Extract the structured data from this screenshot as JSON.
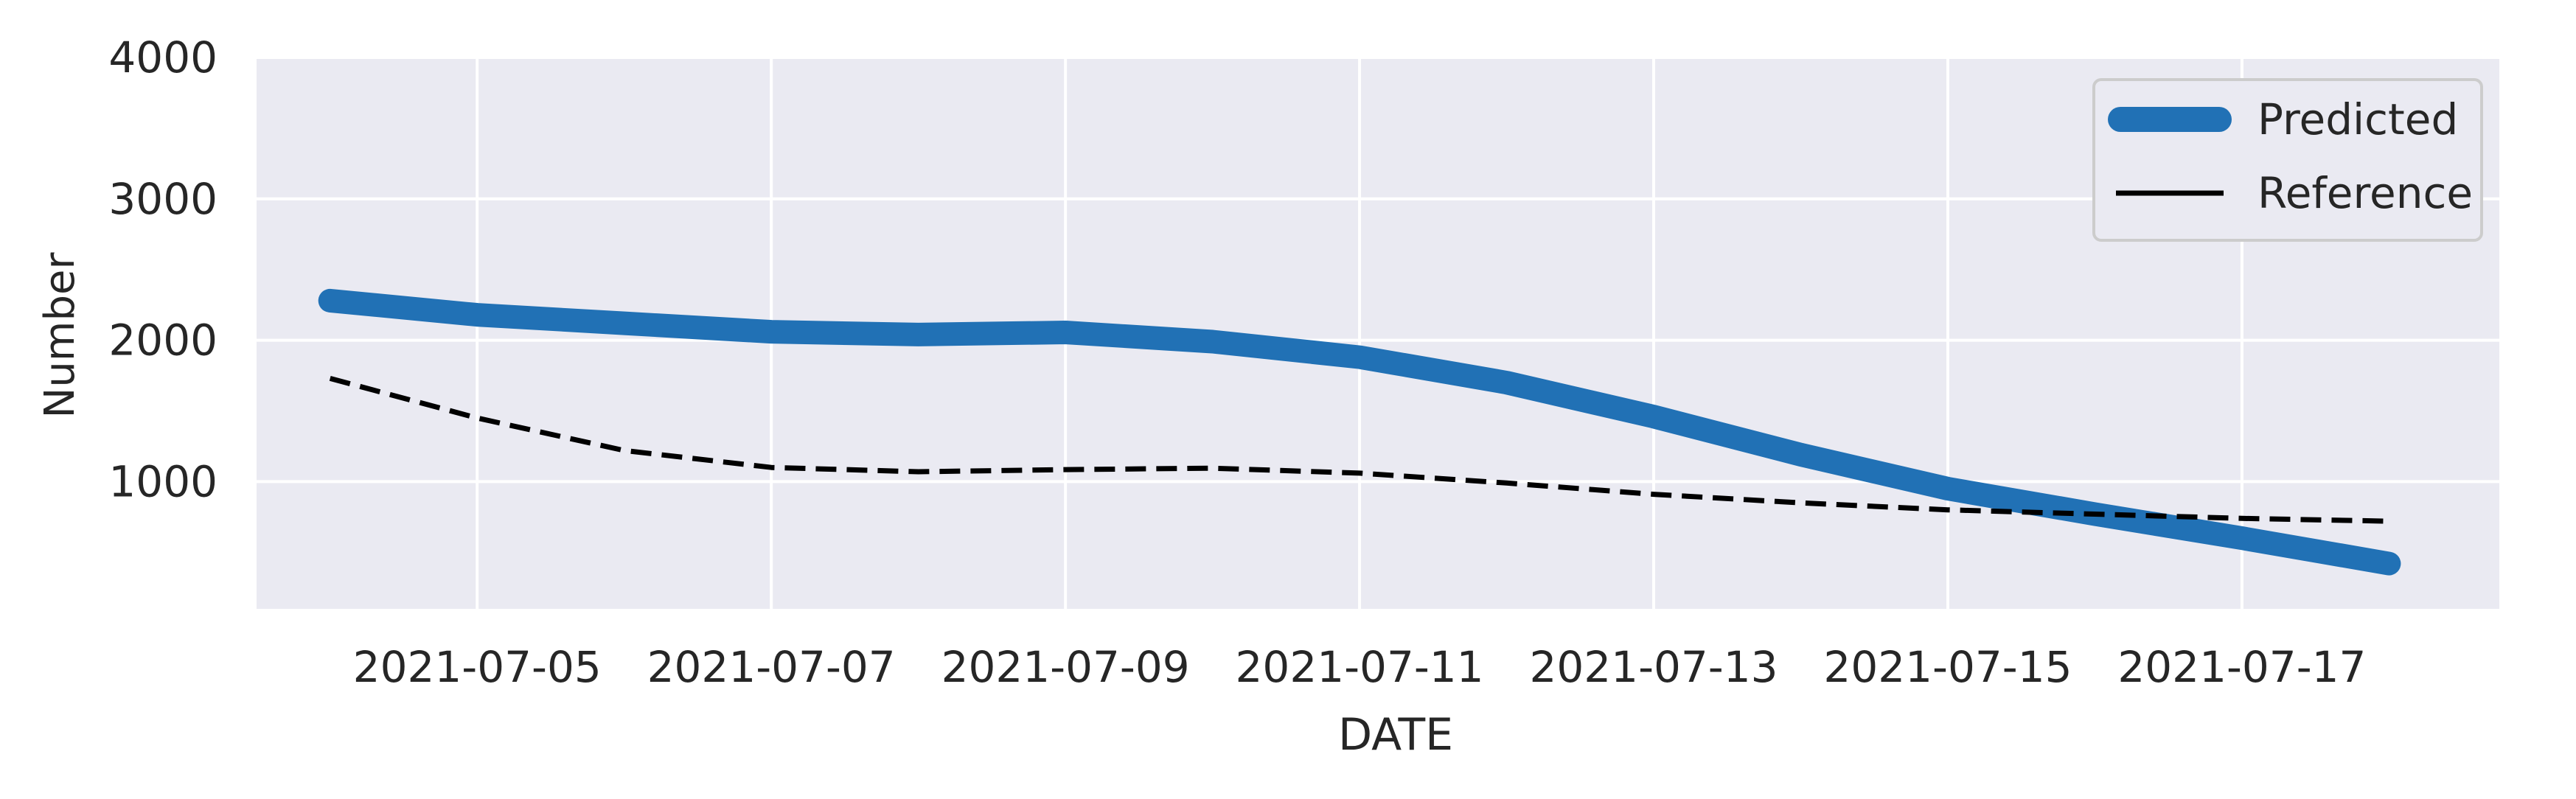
{
  "chart_data": {
    "type": "line",
    "title": "",
    "xlabel": "DATE",
    "ylabel": "Number",
    "x": [
      "2021-07-04",
      "2021-07-05",
      "2021-07-06",
      "2021-07-07",
      "2021-07-08",
      "2021-07-09",
      "2021-07-10",
      "2021-07-11",
      "2021-07-12",
      "2021-07-13",
      "2021-07-14",
      "2021-07-15",
      "2021-07-16",
      "2021-07-17",
      "2021-07-18"
    ],
    "xlim": [
      "2021-07-03T12:00",
      "2021-07-18T18:00"
    ],
    "ylim": [
      100,
      4000
    ],
    "x_ticks": [
      "2021-07-05",
      "2021-07-07",
      "2021-07-09",
      "2021-07-11",
      "2021-07-13",
      "2021-07-15",
      "2021-07-17"
    ],
    "y_ticks": [
      1000,
      2000,
      3000,
      4000
    ],
    "grid": true,
    "legend": "upper-right",
    "background": "#eaeaf2",
    "series": [
      {
        "name": "Predicted",
        "color": "#2171b5",
        "style": "solid-thick",
        "values": [
          2280,
          2180,
          2120,
          2060,
          2040,
          2055,
          1990,
          1880,
          1700,
          1460,
          1190,
          950,
          770,
          600,
          420
        ]
      },
      {
        "name": "Reference",
        "color": "#000000",
        "style": "dashed",
        "values": [
          1730,
          1450,
          1220,
          1100,
          1070,
          1085,
          1095,
          1060,
          990,
          910,
          850,
          800,
          770,
          740,
          720
        ]
      }
    ]
  }
}
